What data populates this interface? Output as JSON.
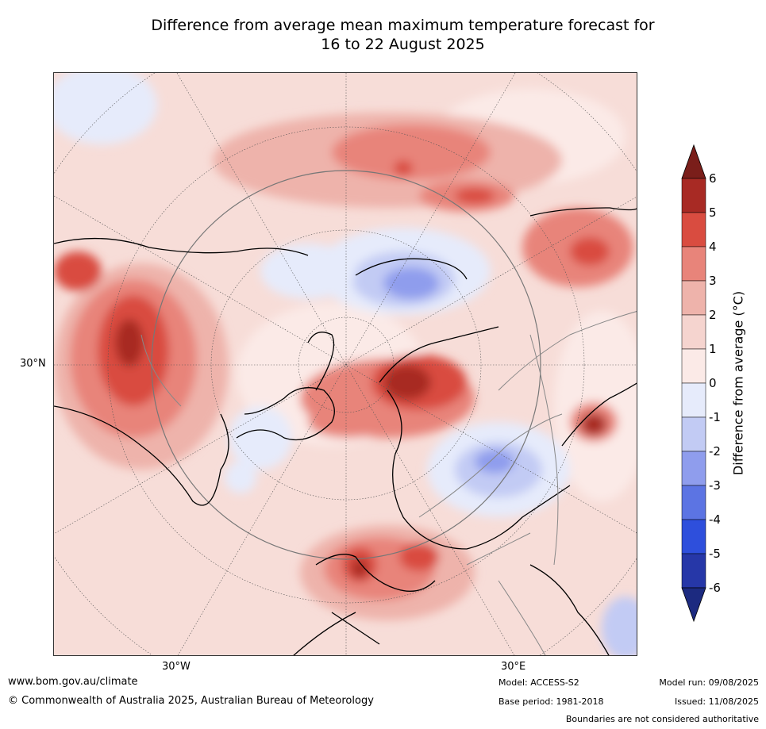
{
  "title_line1": "Difference from average mean maximum temperature forecast for",
  "title_line2": "16 to 22 August 2025",
  "map": {
    "lat_label": "30°N",
    "lon_labels": [
      "30°W",
      "30°E"
    ]
  },
  "colorbar": {
    "label": "Difference from average (°C)",
    "ticks": [
      "6",
      "5",
      "4",
      "3",
      "2",
      "1",
      "0",
      "-1",
      "-2",
      "-3",
      "-4",
      "-5",
      "-6"
    ],
    "colors": [
      "#7a1e1a",
      "#a82a24",
      "#d94c40",
      "#e8847a",
      "#eeb3ab",
      "#f5d4cf",
      "#fbeae7",
      "#e6ebfb",
      "#c2cbf4",
      "#8f9ded",
      "#5c74e3",
      "#2e4fdc",
      "#2637a8",
      "#1c2a80"
    ]
  },
  "footer": {
    "url": "www.bom.gov.au/climate",
    "copyright": "© Commonwealth of Australia 2025, Australian Bureau of Meteorology",
    "model": "Model: ACCESS-S2",
    "base_period": "Base period: 1981-2018",
    "model_run": "Model run: 09/08/2025",
    "issued": "Issued: 11/08/2025",
    "disclaimer": "Boundaries are not considered authoritative"
  }
}
